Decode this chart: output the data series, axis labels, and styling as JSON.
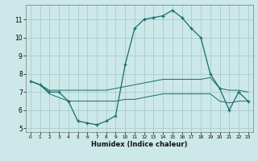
{
  "xlabel": "Humidex (Indice chaleur)",
  "bg_color": "#cce8e8",
  "grid_color": "#aacccc",
  "line_color": "#1a6b6b",
  "x_main": [
    0,
    1,
    2,
    3,
    4,
    5,
    6,
    7,
    8,
    9,
    10,
    11,
    12,
    13,
    14,
    15,
    16,
    17,
    18,
    19,
    20,
    21,
    22,
    23
  ],
  "y_main": [
    7.6,
    7.4,
    7.0,
    7.0,
    6.5,
    5.4,
    5.3,
    5.2,
    5.4,
    5.7,
    8.5,
    10.5,
    11.0,
    11.1,
    11.2,
    11.5,
    11.1,
    10.5,
    10.0,
    8.0,
    7.2,
    6.0,
    7.0,
    6.5
  ],
  "x_upper": [
    0,
    1,
    2,
    3,
    4,
    5,
    6,
    7,
    8,
    9,
    10,
    11,
    12,
    13,
    14,
    15,
    16,
    17,
    18,
    19,
    20,
    21,
    22,
    23
  ],
  "y_upper": [
    7.6,
    7.4,
    7.1,
    7.1,
    7.1,
    7.1,
    7.1,
    7.1,
    7.1,
    7.2,
    7.3,
    7.4,
    7.5,
    7.6,
    7.7,
    7.7,
    7.7,
    7.7,
    7.7,
    7.8,
    7.2,
    7.1,
    7.1,
    7.0
  ],
  "x_lower": [
    0,
    1,
    2,
    3,
    4,
    5,
    6,
    7,
    8,
    9,
    10,
    11,
    12,
    13,
    14,
    15,
    16,
    17,
    18,
    19,
    20,
    21,
    22,
    23
  ],
  "y_lower": [
    7.6,
    7.4,
    6.9,
    6.7,
    6.5,
    6.5,
    6.5,
    6.5,
    6.5,
    6.5,
    6.6,
    6.6,
    6.7,
    6.8,
    6.9,
    6.9,
    6.9,
    6.9,
    6.9,
    6.9,
    6.5,
    6.4,
    6.5,
    6.5
  ],
  "ylim_min": 4.8,
  "ylim_max": 11.8,
  "yticks": [
    5,
    6,
    7,
    8,
    9,
    10,
    11
  ],
  "xticks": [
    0,
    1,
    2,
    3,
    4,
    5,
    6,
    7,
    8,
    9,
    10,
    11,
    12,
    13,
    14,
    15,
    16,
    17,
    18,
    19,
    20,
    21,
    22,
    23
  ],
  "xlim_min": -0.5,
  "xlim_max": 23.5
}
